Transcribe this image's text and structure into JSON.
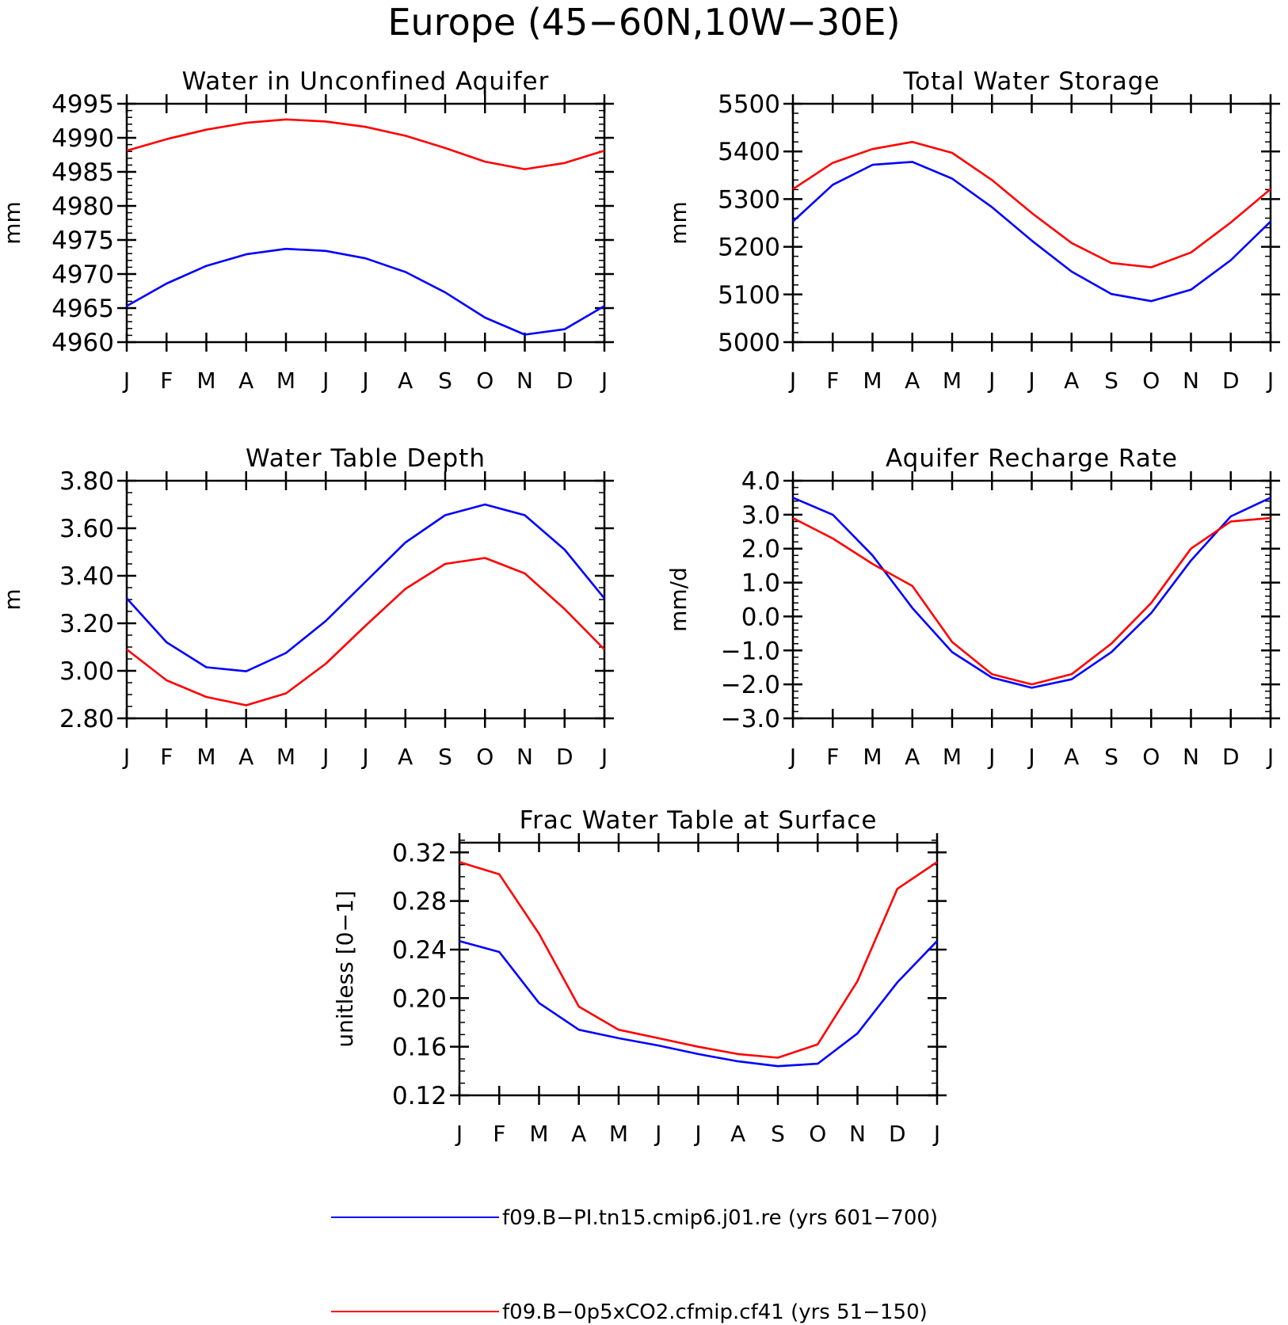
{
  "title": "Europe (45−60N,10W−30E)",
  "months": [
    "J",
    "F",
    "M",
    "A",
    "M",
    "J",
    "J",
    "A",
    "S",
    "O",
    "N",
    "D",
    "J"
  ],
  "colors": {
    "series_1": "#0000ff",
    "series_2": "#ff0000",
    "axis": "#000000"
  },
  "legend": [
    {
      "label": "f09.B−PI.tn15.cmip6.j01.re (yrs 601−700)",
      "color": "#0000ff"
    },
    {
      "label": "f09.B−0p5xCO2.cfmip.cf41 (yrs 51−150)",
      "color": "#ff0000"
    }
  ],
  "chart_data": [
    {
      "type": "line",
      "title": "Water in Unconfined Aquifer",
      "ylabel": "mm",
      "ylim": [
        4960,
        4995
      ],
      "yticks": [
        4960,
        4965,
        4970,
        4975,
        4980,
        4985,
        4990,
        4995
      ],
      "ytick_labels": [
        "4960",
        "4965",
        "4970",
        "4975",
        "4980",
        "4985",
        "4990",
        "4995"
      ],
      "yminor_step": 1,
      "x": [
        "J",
        "F",
        "M",
        "A",
        "M",
        "J",
        "J",
        "A",
        "S",
        "O",
        "N",
        "D",
        "J"
      ],
      "series": [
        {
          "name": "f09.B−PI.tn15.cmip6.j01.re (yrs 601−700)",
          "color": "#0000ff",
          "values": [
            4965.3,
            4968.6,
            4971.2,
            4972.9,
            4973.7,
            4973.4,
            4972.3,
            4970.3,
            4967.3,
            4963.6,
            4961.1,
            4961.9,
            4965.3
          ]
        },
        {
          "name": "f09.B−0p5xCO2.cfmip.cf41 (yrs 51−150)",
          "color": "#ff0000",
          "values": [
            4988.1,
            4989.8,
            4991.2,
            4992.2,
            4992.7,
            4992.4,
            4991.6,
            4990.3,
            4988.5,
            4986.5,
            4985.4,
            4986.3,
            4988.1
          ]
        }
      ]
    },
    {
      "type": "line",
      "title": "Total Water Storage",
      "ylabel": "mm",
      "ylim": [
        5000,
        5500
      ],
      "yticks": [
        5000,
        5100,
        5200,
        5300,
        5400,
        5500
      ],
      "ytick_labels": [
        "5000",
        "5100",
        "5200",
        "5300",
        "5400",
        "5500"
      ],
      "yminor_step": 20,
      "x": [
        "J",
        "F",
        "M",
        "A",
        "M",
        "J",
        "J",
        "A",
        "S",
        "O",
        "N",
        "D",
        "J"
      ],
      "series": [
        {
          "name": "f09.B−PI.tn15.cmip6.j01.re (yrs 601−700)",
          "color": "#0000ff",
          "values": [
            5253,
            5330,
            5372,
            5378,
            5343,
            5283,
            5213,
            5148,
            5101,
            5086,
            5110,
            5172,
            5253
          ]
        },
        {
          "name": "f09.B−0p5xCO2.cfmip.cf41 (yrs 51−150)",
          "color": "#ff0000",
          "values": [
            5321,
            5376,
            5405,
            5420,
            5397,
            5340,
            5271,
            5208,
            5166,
            5157,
            5188,
            5251,
            5321
          ]
        }
      ]
    },
    {
      "type": "line",
      "title": "Water Table Depth",
      "ylabel": "m",
      "ylim": [
        2.8,
        3.8
      ],
      "yticks": [
        2.8,
        3.0,
        3.2,
        3.4,
        3.6,
        3.8
      ],
      "ytick_labels": [
        "2.80",
        "3.00",
        "3.20",
        "3.40",
        "3.60",
        "3.80"
      ],
      "yminor_step": 0.05,
      "x": [
        "J",
        "F",
        "M",
        "A",
        "M",
        "J",
        "J",
        "A",
        "S",
        "O",
        "N",
        "D",
        "J"
      ],
      "series": [
        {
          "name": "f09.B−PI.tn15.cmip6.j01.re (yrs 601−700)",
          "color": "#0000ff",
          "values": [
            3.305,
            3.12,
            3.015,
            2.998,
            3.075,
            3.21,
            3.375,
            3.54,
            3.655,
            3.7,
            3.655,
            3.51,
            3.305
          ]
        },
        {
          "name": "f09.B−0p5xCO2.cfmip.cf41 (yrs 51−150)",
          "color": "#ff0000",
          "values": [
            3.09,
            2.96,
            2.89,
            2.855,
            2.905,
            3.03,
            3.19,
            3.345,
            3.45,
            3.475,
            3.41,
            3.26,
            3.09
          ]
        }
      ]
    },
    {
      "type": "line",
      "title": "Aquifer Recharge Rate",
      "ylabel": "mm/d",
      "ylim": [
        -3.0,
        4.0
      ],
      "yticks": [
        -3.0,
        -2.0,
        -1.0,
        0.0,
        1.0,
        2.0,
        3.0,
        4.0
      ],
      "ytick_labels": [
        "−3.0",
        "−2.0",
        "−1.0",
        "0.0",
        "1.0",
        "2.0",
        "3.0",
        "4.0"
      ],
      "yminor_step": 0.2,
      "x": [
        "J",
        "F",
        "M",
        "A",
        "M",
        "J",
        "J",
        "A",
        "S",
        "O",
        "N",
        "D",
        "J"
      ],
      "series": [
        {
          "name": "f09.B−PI.tn15.cmip6.j01.re (yrs 601−700)",
          "color": "#0000ff",
          "values": [
            3.5,
            3.0,
            1.8,
            0.25,
            -1.05,
            -1.8,
            -2.1,
            -1.85,
            -1.05,
            0.1,
            1.65,
            2.95,
            3.5
          ]
        },
        {
          "name": "f09.B−0p5xCO2.cfmip.cf41 (yrs 51−150)",
          "color": "#ff0000",
          "values": [
            2.9,
            2.3,
            1.55,
            0.9,
            -0.75,
            -1.7,
            -2.0,
            -1.7,
            -0.8,
            0.4,
            2.0,
            2.8,
            2.9
          ]
        }
      ]
    },
    {
      "type": "line",
      "title": "Frac Water Table at Surface",
      "ylabel": "unitless [0−1]",
      "ylim": [
        0.12,
        0.32
      ],
      "yticks": [
        0.12,
        0.16,
        0.2,
        0.24,
        0.28,
        0.32
      ],
      "ytick_labels": [
        "0.12",
        "0.16",
        "0.20",
        "0.24",
        "0.28",
        "0.32"
      ],
      "yminor_step": 0.01,
      "yextent": [
        0.12,
        0.328
      ],
      "x": [
        "J",
        "F",
        "M",
        "A",
        "M",
        "J",
        "J",
        "A",
        "S",
        "O",
        "N",
        "D",
        "J"
      ],
      "series": [
        {
          "name": "f09.B−PI.tn15.cmip6.j01.re (yrs 601−700)",
          "color": "#0000ff",
          "values": [
            0.247,
            0.238,
            0.196,
            0.174,
            0.167,
            0.161,
            0.154,
            0.148,
            0.144,
            0.146,
            0.171,
            0.213,
            0.247
          ]
        },
        {
          "name": "f09.B−0p5xCO2.cfmip.cf41 (yrs 51−150)",
          "color": "#ff0000",
          "values": [
            0.312,
            0.302,
            0.253,
            0.193,
            0.174,
            0.167,
            0.16,
            0.154,
            0.151,
            0.162,
            0.214,
            0.29,
            0.312
          ]
        }
      ]
    }
  ]
}
